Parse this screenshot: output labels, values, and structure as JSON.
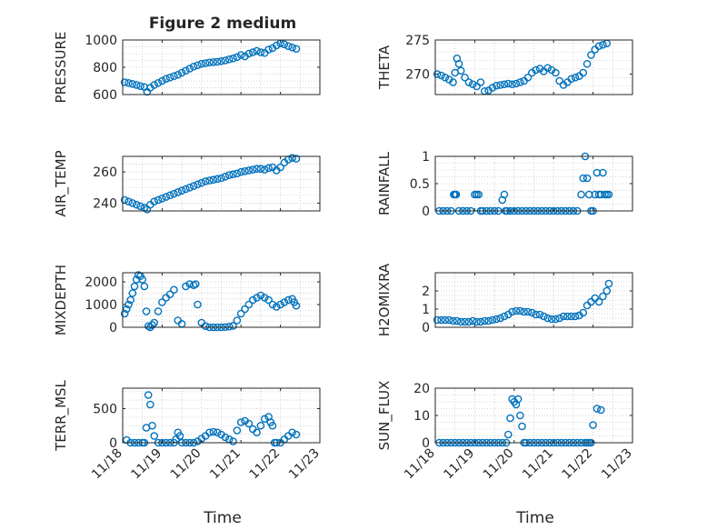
{
  "figure": {
    "title": "Figure 2 medium",
    "xlabel_left": "Time",
    "xlabel_right": "Time",
    "marker_color": "#0072bd",
    "grid_color": "#c8c8c8"
  },
  "chart_data": [
    {
      "type": "scatter",
      "ylabel": "PRESSURE",
      "xlim": [
        0,
        5
      ],
      "ylim": [
        600,
        1000
      ],
      "xticks": [
        "11/18",
        "11/19",
        "11/20",
        "11/21",
        "11/22",
        "11/23"
      ],
      "yticks": [
        600,
        800,
        1000
      ],
      "grid": true,
      "x": [
        0.05,
        0.15,
        0.25,
        0.35,
        0.45,
        0.55,
        0.62,
        0.7,
        0.8,
        0.9,
        1.0,
        1.1,
        1.2,
        1.3,
        1.4,
        1.5,
        1.6,
        1.7,
        1.8,
        1.9,
        2.0,
        2.1,
        2.2,
        2.3,
        2.4,
        2.5,
        2.6,
        2.7,
        2.8,
        2.9,
        3.0,
        3.1,
        3.2,
        3.3,
        3.4,
        3.5,
        3.6,
        3.7,
        3.8,
        3.9,
        4.0,
        4.1,
        4.2,
        4.3,
        4.4
      ],
      "y": [
        690,
        685,
        678,
        670,
        662,
        655,
        620,
        650,
        670,
        685,
        700,
        715,
        725,
        735,
        745,
        760,
        775,
        790,
        805,
        815,
        825,
        830,
        835,
        838,
        840,
        845,
        850,
        858,
        865,
        875,
        890,
        880,
        900,
        910,
        920,
        910,
        905,
        930,
        940,
        960,
        975,
        968,
        955,
        945,
        935
      ]
    },
    {
      "type": "scatter",
      "ylabel": "THETA",
      "xlim": [
        0,
        5
      ],
      "ylim": [
        267,
        275
      ],
      "xticks": [
        "11/18",
        "11/19",
        "11/20",
        "11/21",
        "11/22",
        "11/23"
      ],
      "yticks": [
        270,
        275
      ],
      "grid": true,
      "x": [
        0.05,
        0.15,
        0.25,
        0.35,
        0.45,
        0.5,
        0.55,
        0.6,
        0.65,
        0.75,
        0.85,
        0.95,
        1.05,
        1.15,
        1.25,
        1.35,
        1.45,
        1.55,
        1.65,
        1.75,
        1.85,
        1.95,
        2.05,
        2.15,
        2.25,
        2.35,
        2.45,
        2.55,
        2.65,
        2.75,
        2.85,
        2.95,
        3.05,
        3.15,
        3.25,
        3.35,
        3.45,
        3.55,
        3.65,
        3.75,
        3.85,
        3.95,
        4.05,
        4.15,
        4.25,
        4.35
      ],
      "y": [
        270,
        269.8,
        269.5,
        269.2,
        268.8,
        270.2,
        272.3,
        271.5,
        270.5,
        269.5,
        268.8,
        268.5,
        268.2,
        268.8,
        267.5,
        267.6,
        268,
        268.3,
        268.4,
        268.5,
        268.6,
        268.5,
        268.6,
        268.8,
        269,
        269.5,
        270.2,
        270.6,
        270.8,
        270.4,
        270.9,
        270.6,
        270.2,
        269,
        268.4,
        268.8,
        269.3,
        269.5,
        269.7,
        270.2,
        271.5,
        272.8,
        273.6,
        274.1,
        274.3,
        274.5
      ]
    },
    {
      "type": "scatter",
      "ylabel": "AIR_TEMP",
      "xlim": [
        0,
        5
      ],
      "ylim": [
        235,
        270
      ],
      "xticks": [
        "11/18",
        "11/19",
        "11/20",
        "11/21",
        "11/22",
        "11/23"
      ],
      "yticks": [
        240,
        260
      ],
      "grid": true,
      "x": [
        0.05,
        0.15,
        0.25,
        0.35,
        0.45,
        0.55,
        0.62,
        0.7,
        0.8,
        0.9,
        1.0,
        1.1,
        1.2,
        1.3,
        1.4,
        1.5,
        1.6,
        1.7,
        1.8,
        1.9,
        2.0,
        2.1,
        2.2,
        2.3,
        2.4,
        2.5,
        2.6,
        2.7,
        2.8,
        2.9,
        3.0,
        3.1,
        3.2,
        3.3,
        3.4,
        3.5,
        3.6,
        3.7,
        3.8,
        3.9,
        4.0,
        4.1,
        4.2,
        4.3,
        4.4
      ],
      "y": [
        242,
        241,
        240,
        239,
        238,
        237,
        236,
        239,
        241,
        242,
        243,
        244,
        245,
        246,
        247,
        248,
        249,
        250,
        251,
        252,
        253,
        254,
        254.5,
        255,
        255.5,
        256,
        257,
        258,
        258.5,
        259,
        260,
        260.5,
        261,
        261.5,
        262,
        262,
        261.5,
        262.5,
        263,
        261,
        263,
        266,
        268,
        269,
        268.5
      ]
    },
    {
      "type": "scatter",
      "ylabel": "RAINFALL",
      "xlim": [
        0,
        5
      ],
      "ylim": [
        0,
        1
      ],
      "xticks": [
        "11/18",
        "11/19",
        "11/20",
        "11/21",
        "11/22",
        "11/23"
      ],
      "yticks": [
        0,
        0.5,
        1
      ],
      "grid": true,
      "x": [
        0.1,
        0.2,
        0.3,
        0.4,
        0.47,
        0.5,
        0.53,
        0.6,
        0.7,
        0.8,
        0.9,
        1.0,
        1.05,
        1.1,
        1.15,
        1.2,
        1.3,
        1.4,
        1.5,
        1.6,
        1.7,
        1.75,
        1.78,
        1.82,
        1.9,
        2.0,
        2.1,
        2.2,
        2.3,
        2.4,
        2.5,
        2.6,
        2.7,
        2.8,
        2.9,
        3.0,
        3.1,
        3.2,
        3.3,
        3.4,
        3.5,
        3.6,
        3.7,
        3.75,
        3.8,
        3.85,
        3.9,
        3.95,
        4.0,
        4.05,
        4.1,
        4.15,
        4.2,
        4.25,
        4.3,
        4.35,
        4.4
      ],
      "y": [
        0,
        0,
        0,
        0,
        0.3,
        0.3,
        0.3,
        0,
        0,
        0,
        0,
        0.3,
        0.3,
        0.3,
        0,
        0,
        0,
        0,
        0,
        0,
        0.2,
        0.3,
        0,
        0,
        0,
        0,
        0,
        0,
        0,
        0,
        0,
        0,
        0,
        0,
        0,
        0,
        0,
        0,
        0,
        0,
        0,
        0,
        0.3,
        0.6,
        1.0,
        0.6,
        0.3,
        0,
        0,
        0.3,
        0.7,
        0.3,
        0.3,
        0.7,
        0.3,
        0.3,
        0.3
      ]
    },
    {
      "type": "scatter",
      "ylabel": "MIXDEPTH",
      "xlim": [
        0,
        5
      ],
      "ylim": [
        0,
        2400
      ],
      "xticks": [
        "11/18",
        "11/19",
        "11/20",
        "11/21",
        "11/22",
        "11/23"
      ],
      "yticks": [
        0,
        1000,
        2000
      ],
      "grid": true,
      "x": [
        0.05,
        0.1,
        0.15,
        0.2,
        0.25,
        0.3,
        0.35,
        0.4,
        0.45,
        0.5,
        0.55,
        0.6,
        0.65,
        0.7,
        0.75,
        0.8,
        0.9,
        1.0,
        1.1,
        1.2,
        1.3,
        1.4,
        1.5,
        1.6,
        1.7,
        1.8,
        1.85,
        1.9,
        2.0,
        2.1,
        2.2,
        2.3,
        2.4,
        2.5,
        2.6,
        2.7,
        2.8,
        2.9,
        3.0,
        3.1,
        3.2,
        3.3,
        3.4,
        3.5,
        3.6,
        3.7,
        3.8,
        3.9,
        4.0,
        4.1,
        4.2,
        4.3,
        4.35,
        4.4
      ],
      "y": [
        600,
        800,
        1000,
        1200,
        1500,
        1800,
        2100,
        2300,
        2250,
        2100,
        1800,
        700,
        50,
        0,
        100,
        200,
        700,
        1100,
        1300,
        1450,
        1650,
        300,
        150,
        1800,
        1900,
        1850,
        1900,
        1000,
        200,
        50,
        0,
        0,
        0,
        0,
        10,
        30,
        60,
        300,
        600,
        800,
        1000,
        1200,
        1300,
        1400,
        1300,
        1200,
        1000,
        900,
        1000,
        1100,
        1200,
        1250,
        1100,
        950
      ]
    },
    {
      "type": "scatter",
      "ylabel": "H2OMIXRA",
      "xlim": [
        0,
        5
      ],
      "ylim": [
        0,
        3
      ],
      "xticks": [
        "11/18",
        "11/19",
        "11/20",
        "11/21",
        "11/22",
        "11/23"
      ],
      "yticks": [
        0,
        1,
        2
      ],
      "grid": true,
      "x": [
        0.05,
        0.15,
        0.25,
        0.35,
        0.45,
        0.55,
        0.65,
        0.75,
        0.85,
        0.95,
        1.05,
        1.15,
        1.25,
        1.35,
        1.45,
        1.55,
        1.65,
        1.75,
        1.85,
        1.95,
        2.05,
        2.15,
        2.25,
        2.35,
        2.45,
        2.55,
        2.65,
        2.75,
        2.85,
        2.95,
        3.05,
        3.15,
        3.25,
        3.35,
        3.45,
        3.55,
        3.65,
        3.75,
        3.85,
        3.95,
        4.05,
        4.15,
        4.25,
        4.35,
        4.4
      ],
      "y": [
        0.4,
        0.4,
        0.4,
        0.4,
        0.35,
        0.35,
        0.3,
        0.3,
        0.3,
        0.35,
        0.3,
        0.3,
        0.35,
        0.35,
        0.4,
        0.45,
        0.5,
        0.6,
        0.7,
        0.85,
        0.9,
        0.9,
        0.85,
        0.85,
        0.8,
        0.7,
        0.7,
        0.6,
        0.5,
        0.45,
        0.45,
        0.5,
        0.6,
        0.6,
        0.6,
        0.6,
        0.65,
        0.8,
        1.2,
        1.4,
        1.6,
        1.4,
        1.7,
        2.0,
        2.4
      ]
    },
    {
      "type": "scatter",
      "ylabel": "TERR_MSL",
      "xlim": [
        0,
        5
      ],
      "ylim": [
        0,
        800
      ],
      "xticks": [
        "11/18",
        "11/19",
        "11/20",
        "11/21",
        "11/22",
        "11/23"
      ],
      "yticks": [
        0,
        500
      ],
      "grid": true,
      "x": [
        0.1,
        0.2,
        0.3,
        0.4,
        0.5,
        0.55,
        0.6,
        0.65,
        0.7,
        0.75,
        0.8,
        0.9,
        1.0,
        1.1,
        1.2,
        1.3,
        1.35,
        1.4,
        1.45,
        1.5,
        1.6,
        1.7,
        1.8,
        1.9,
        2.0,
        2.1,
        2.2,
        2.3,
        2.4,
        2.5,
        2.6,
        2.7,
        2.8,
        2.9,
        3.0,
        3.1,
        3.2,
        3.3,
        3.4,
        3.5,
        3.6,
        3.7,
        3.75,
        3.8,
        3.85,
        3.9,
        4.0,
        4.1,
        4.2,
        4.3,
        4.4
      ],
      "y": [
        40,
        0,
        0,
        0,
        0,
        0,
        220,
        700,
        560,
        250,
        100,
        0,
        0,
        0,
        0,
        0,
        50,
        150,
        100,
        0,
        0,
        0,
        0,
        20,
        60,
        100,
        150,
        160,
        150,
        120,
        80,
        50,
        20,
        180,
        300,
        320,
        280,
        200,
        150,
        250,
        350,
        380,
        300,
        250,
        0,
        0,
        0,
        50,
        100,
        150,
        120
      ]
    },
    {
      "type": "scatter",
      "ylabel": "SUN_FLUX",
      "xlim": [
        0,
        5
      ],
      "ylim": [
        0,
        20
      ],
      "xticks": [
        "11/18",
        "11/19",
        "11/20",
        "11/21",
        "11/22",
        "11/23"
      ],
      "yticks": [
        0,
        10,
        20
      ],
      "grid": true,
      "x": [
        0.1,
        0.2,
        0.3,
        0.4,
        0.5,
        0.6,
        0.7,
        0.8,
        0.9,
        1.0,
        1.1,
        1.2,
        1.3,
        1.4,
        1.5,
        1.6,
        1.7,
        1.8,
        1.85,
        1.9,
        1.95,
        2.0,
        2.05,
        2.1,
        2.15,
        2.2,
        2.25,
        2.3,
        2.4,
        2.5,
        2.6,
        2.7,
        2.8,
        2.9,
        3.0,
        3.1,
        3.2,
        3.3,
        3.4,
        3.5,
        3.6,
        3.7,
        3.8,
        3.85,
        3.9,
        3.95,
        4.0,
        4.1,
        4.2
      ],
      "y": [
        0,
        0,
        0,
        0,
        0,
        0,
        0,
        0,
        0,
        0,
        0,
        0,
        0,
        0,
        0,
        0,
        0,
        0,
        3,
        9,
        16,
        15,
        14,
        16,
        10,
        6,
        0,
        0,
        0,
        0,
        0,
        0,
        0,
        0,
        0,
        0,
        0,
        0,
        0,
        0,
        0,
        0,
        0,
        0,
        0,
        0,
        6.5,
        12.5,
        12
      ]
    }
  ]
}
